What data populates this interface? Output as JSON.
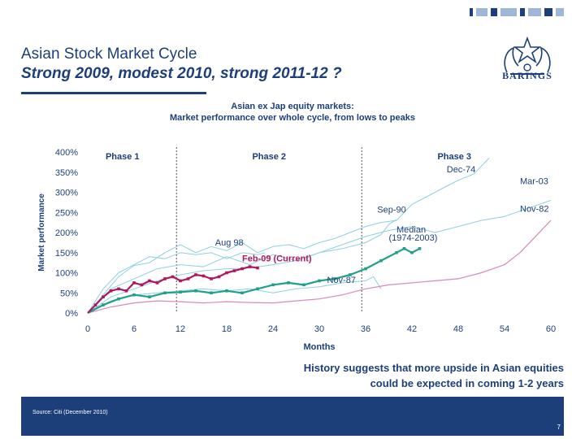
{
  "header": {
    "title": "Asian Stock Market Cycle",
    "subtitle": "Strong 2009, modest 2010, strong 2011-12 ?",
    "brand": "BARINGS"
  },
  "colors": {
    "navy": "#1c3f7a",
    "current": "#b0185d",
    "median": "#20a08a",
    "historic": "#8ecfe0",
    "nov82": "#d98abb"
  },
  "chart_title": [
    "Asian ex Jap equity markets:",
    "Market performance over whole cycle, from lows to peaks"
  ],
  "chart_data": {
    "type": "line",
    "xlabel": "Months",
    "ylabel": "Market performance",
    "xlim": [
      0,
      60
    ],
    "ylim": [
      0,
      400
    ],
    "xticks": [
      "0",
      "6",
      "12",
      "18",
      "24",
      "30",
      "36",
      "42",
      "48",
      "54",
      "60"
    ],
    "yticks": [
      "0%",
      "50%",
      "100%",
      "150%",
      "200%",
      "250%",
      "300%",
      "350%",
      "400%"
    ],
    "phase_lines": [
      11.5,
      35.5
    ],
    "phases": [
      {
        "label": "Phase 1",
        "x": 4.5
      },
      {
        "label": "Phase 2",
        "x": 23.5
      },
      {
        "label": "Phase 3",
        "x": 47.5
      }
    ],
    "series": [
      {
        "name": "Dec-74",
        "style": "historic",
        "points": [
          [
            0,
            0
          ],
          [
            2,
            45
          ],
          [
            4,
            90
          ],
          [
            6,
            118
          ],
          [
            8,
            125
          ],
          [
            10,
            150
          ],
          [
            12,
            170
          ],
          [
            14,
            150
          ],
          [
            16,
            165
          ],
          [
            18,
            155
          ],
          [
            20,
            175
          ],
          [
            22,
            150
          ],
          [
            24,
            165
          ],
          [
            26,
            170
          ],
          [
            28,
            160
          ],
          [
            30,
            175
          ],
          [
            32,
            185
          ],
          [
            34,
            200
          ],
          [
            36,
            215
          ],
          [
            38,
            225
          ],
          [
            40,
            230
          ],
          [
            42,
            270
          ],
          [
            44,
            290
          ],
          [
            46,
            310
          ],
          [
            48,
            330
          ],
          [
            50,
            345
          ],
          [
            52,
            385
          ]
        ]
      },
      {
        "name": "Mar-03",
        "style": "historic",
        "points": [
          [
            0,
            0
          ],
          [
            3,
            40
          ],
          [
            6,
            60
          ],
          [
            9,
            80
          ],
          [
            12,
            95
          ],
          [
            15,
            105
          ],
          [
            18,
            110
          ],
          [
            21,
            112
          ],
          [
            24,
            120
          ],
          [
            27,
            130
          ],
          [
            30,
            150
          ],
          [
            33,
            170
          ],
          [
            36,
            190
          ],
          [
            39,
            205
          ],
          [
            42,
            215
          ],
          [
            45,
            200
          ],
          [
            48,
            215
          ],
          [
            51,
            230
          ],
          [
            54,
            240
          ],
          [
            57,
            260
          ],
          [
            60,
            280
          ]
        ]
      },
      {
        "name": "Sep-90",
        "style": "historic",
        "points": [
          [
            0,
            0
          ],
          [
            3,
            60
          ],
          [
            6,
            85
          ],
          [
            9,
            110
          ],
          [
            12,
            120
          ],
          [
            15,
            115
          ],
          [
            18,
            140
          ],
          [
            21,
            120
          ],
          [
            24,
            145
          ],
          [
            27,
            130
          ],
          [
            30,
            150
          ],
          [
            33,
            160
          ],
          [
            36,
            175
          ],
          [
            38,
            195
          ],
          [
            39,
            220
          ],
          [
            40,
            232
          ]
        ]
      },
      {
        "name": "Aug 98",
        "style": "historic",
        "points": [
          [
            0,
            0
          ],
          [
            2,
            60
          ],
          [
            4,
            100
          ],
          [
            6,
            120
          ],
          [
            8,
            140
          ],
          [
            10,
            135
          ],
          [
            12,
            150
          ],
          [
            14,
            145
          ],
          [
            16,
            150
          ],
          [
            18,
            135
          ],
          [
            20,
            150
          ],
          [
            22,
            145
          ],
          [
            23,
            150
          ]
        ]
      },
      {
        "name": "Nov-87",
        "style": "historic",
        "points": [
          [
            0,
            0
          ],
          [
            3,
            30
          ],
          [
            6,
            45
          ],
          [
            9,
            50
          ],
          [
            12,
            55
          ],
          [
            15,
            60
          ],
          [
            18,
            55
          ],
          [
            21,
            60
          ],
          [
            24,
            50
          ],
          [
            27,
            60
          ],
          [
            30,
            65
          ],
          [
            33,
            75
          ],
          [
            36,
            80
          ],
          [
            37,
            90
          ],
          [
            38,
            60
          ]
        ]
      },
      {
        "name": "Nov-82",
        "style": "nov82",
        "points": [
          [
            0,
            0
          ],
          [
            3,
            15
          ],
          [
            6,
            25
          ],
          [
            9,
            30
          ],
          [
            12,
            28
          ],
          [
            15,
            25
          ],
          [
            18,
            28
          ],
          [
            21,
            26
          ],
          [
            24,
            25
          ],
          [
            27,
            30
          ],
          [
            30,
            35
          ],
          [
            33,
            45
          ],
          [
            36,
            60
          ],
          [
            39,
            70
          ],
          [
            42,
            75
          ],
          [
            45,
            80
          ],
          [
            48,
            85
          ],
          [
            51,
            100
          ],
          [
            54,
            120
          ],
          [
            56,
            150
          ],
          [
            58,
            190
          ],
          [
            60,
            230
          ]
        ]
      },
      {
        "name": "Median (1974-2003)",
        "style": "median",
        "points": [
          [
            0,
            0
          ],
          [
            2,
            20
          ],
          [
            4,
            35
          ],
          [
            6,
            45
          ],
          [
            8,
            40
          ],
          [
            10,
            50
          ],
          [
            12,
            52
          ],
          [
            14,
            55
          ],
          [
            16,
            50
          ],
          [
            18,
            55
          ],
          [
            20,
            50
          ],
          [
            22,
            60
          ],
          [
            24,
            70
          ],
          [
            26,
            75
          ],
          [
            28,
            70
          ],
          [
            30,
            80
          ],
          [
            32,
            85
          ],
          [
            34,
            95
          ],
          [
            36,
            110
          ],
          [
            38,
            130
          ],
          [
            40,
            150
          ],
          [
            41,
            160
          ],
          [
            42,
            150
          ],
          [
            43,
            160
          ]
        ]
      },
      {
        "name": "Feb-09 (Current)",
        "style": "current",
        "points": [
          [
            0,
            0
          ],
          [
            1,
            20
          ],
          [
            2,
            40
          ],
          [
            3,
            55
          ],
          [
            4,
            60
          ],
          [
            5,
            55
          ],
          [
            6,
            75
          ],
          [
            7,
            70
          ],
          [
            8,
            80
          ],
          [
            9,
            75
          ],
          [
            10,
            85
          ],
          [
            11,
            90
          ],
          [
            12,
            80
          ],
          [
            13,
            85
          ],
          [
            14,
            95
          ],
          [
            15,
            92
          ],
          [
            16,
            85
          ],
          [
            17,
            90
          ],
          [
            18,
            100
          ],
          [
            19,
            105
          ],
          [
            20,
            110
          ],
          [
            21,
            115
          ],
          [
            22,
            112
          ]
        ]
      }
    ],
    "labels": [
      {
        "text": "Dec-74",
        "x": 46.5,
        "y": 350,
        "color": "navy",
        "anchor": "start"
      },
      {
        "text": "Mar-03",
        "x": 56,
        "y": 320,
        "color": "navy",
        "anchor": "start"
      },
      {
        "text": "Nov-82",
        "x": 56,
        "y": 252,
        "color": "navy",
        "anchor": "start"
      },
      {
        "text": "Sep-90",
        "x": 37.5,
        "y": 250,
        "color": "navy",
        "anchor": "start"
      },
      {
        "text": "Median",
        "x": 40,
        "y": 200,
        "color": "navy",
        "anchor": "start"
      },
      {
        "text": "(1974-2003)",
        "x": 39,
        "y": 180,
        "color": "navy",
        "anchor": "start"
      },
      {
        "text": "Aug 98",
        "x": 16.5,
        "y": 168,
        "color": "navy",
        "anchor": "start"
      },
      {
        "text": "Feb-09 (Current)",
        "x": 20,
        "y": 128,
        "color": "current",
        "anchor": "start"
      },
      {
        "text": "Nov-87",
        "x": 31,
        "y": 75,
        "color": "navy",
        "anchor": "start"
      }
    ]
  },
  "note": [
    "History suggests that more upside in Asian equities",
    "could be expected in coming 1-2 years"
  ],
  "footer": {
    "source": "Source: Citi (December 2010)",
    "page": "7"
  }
}
